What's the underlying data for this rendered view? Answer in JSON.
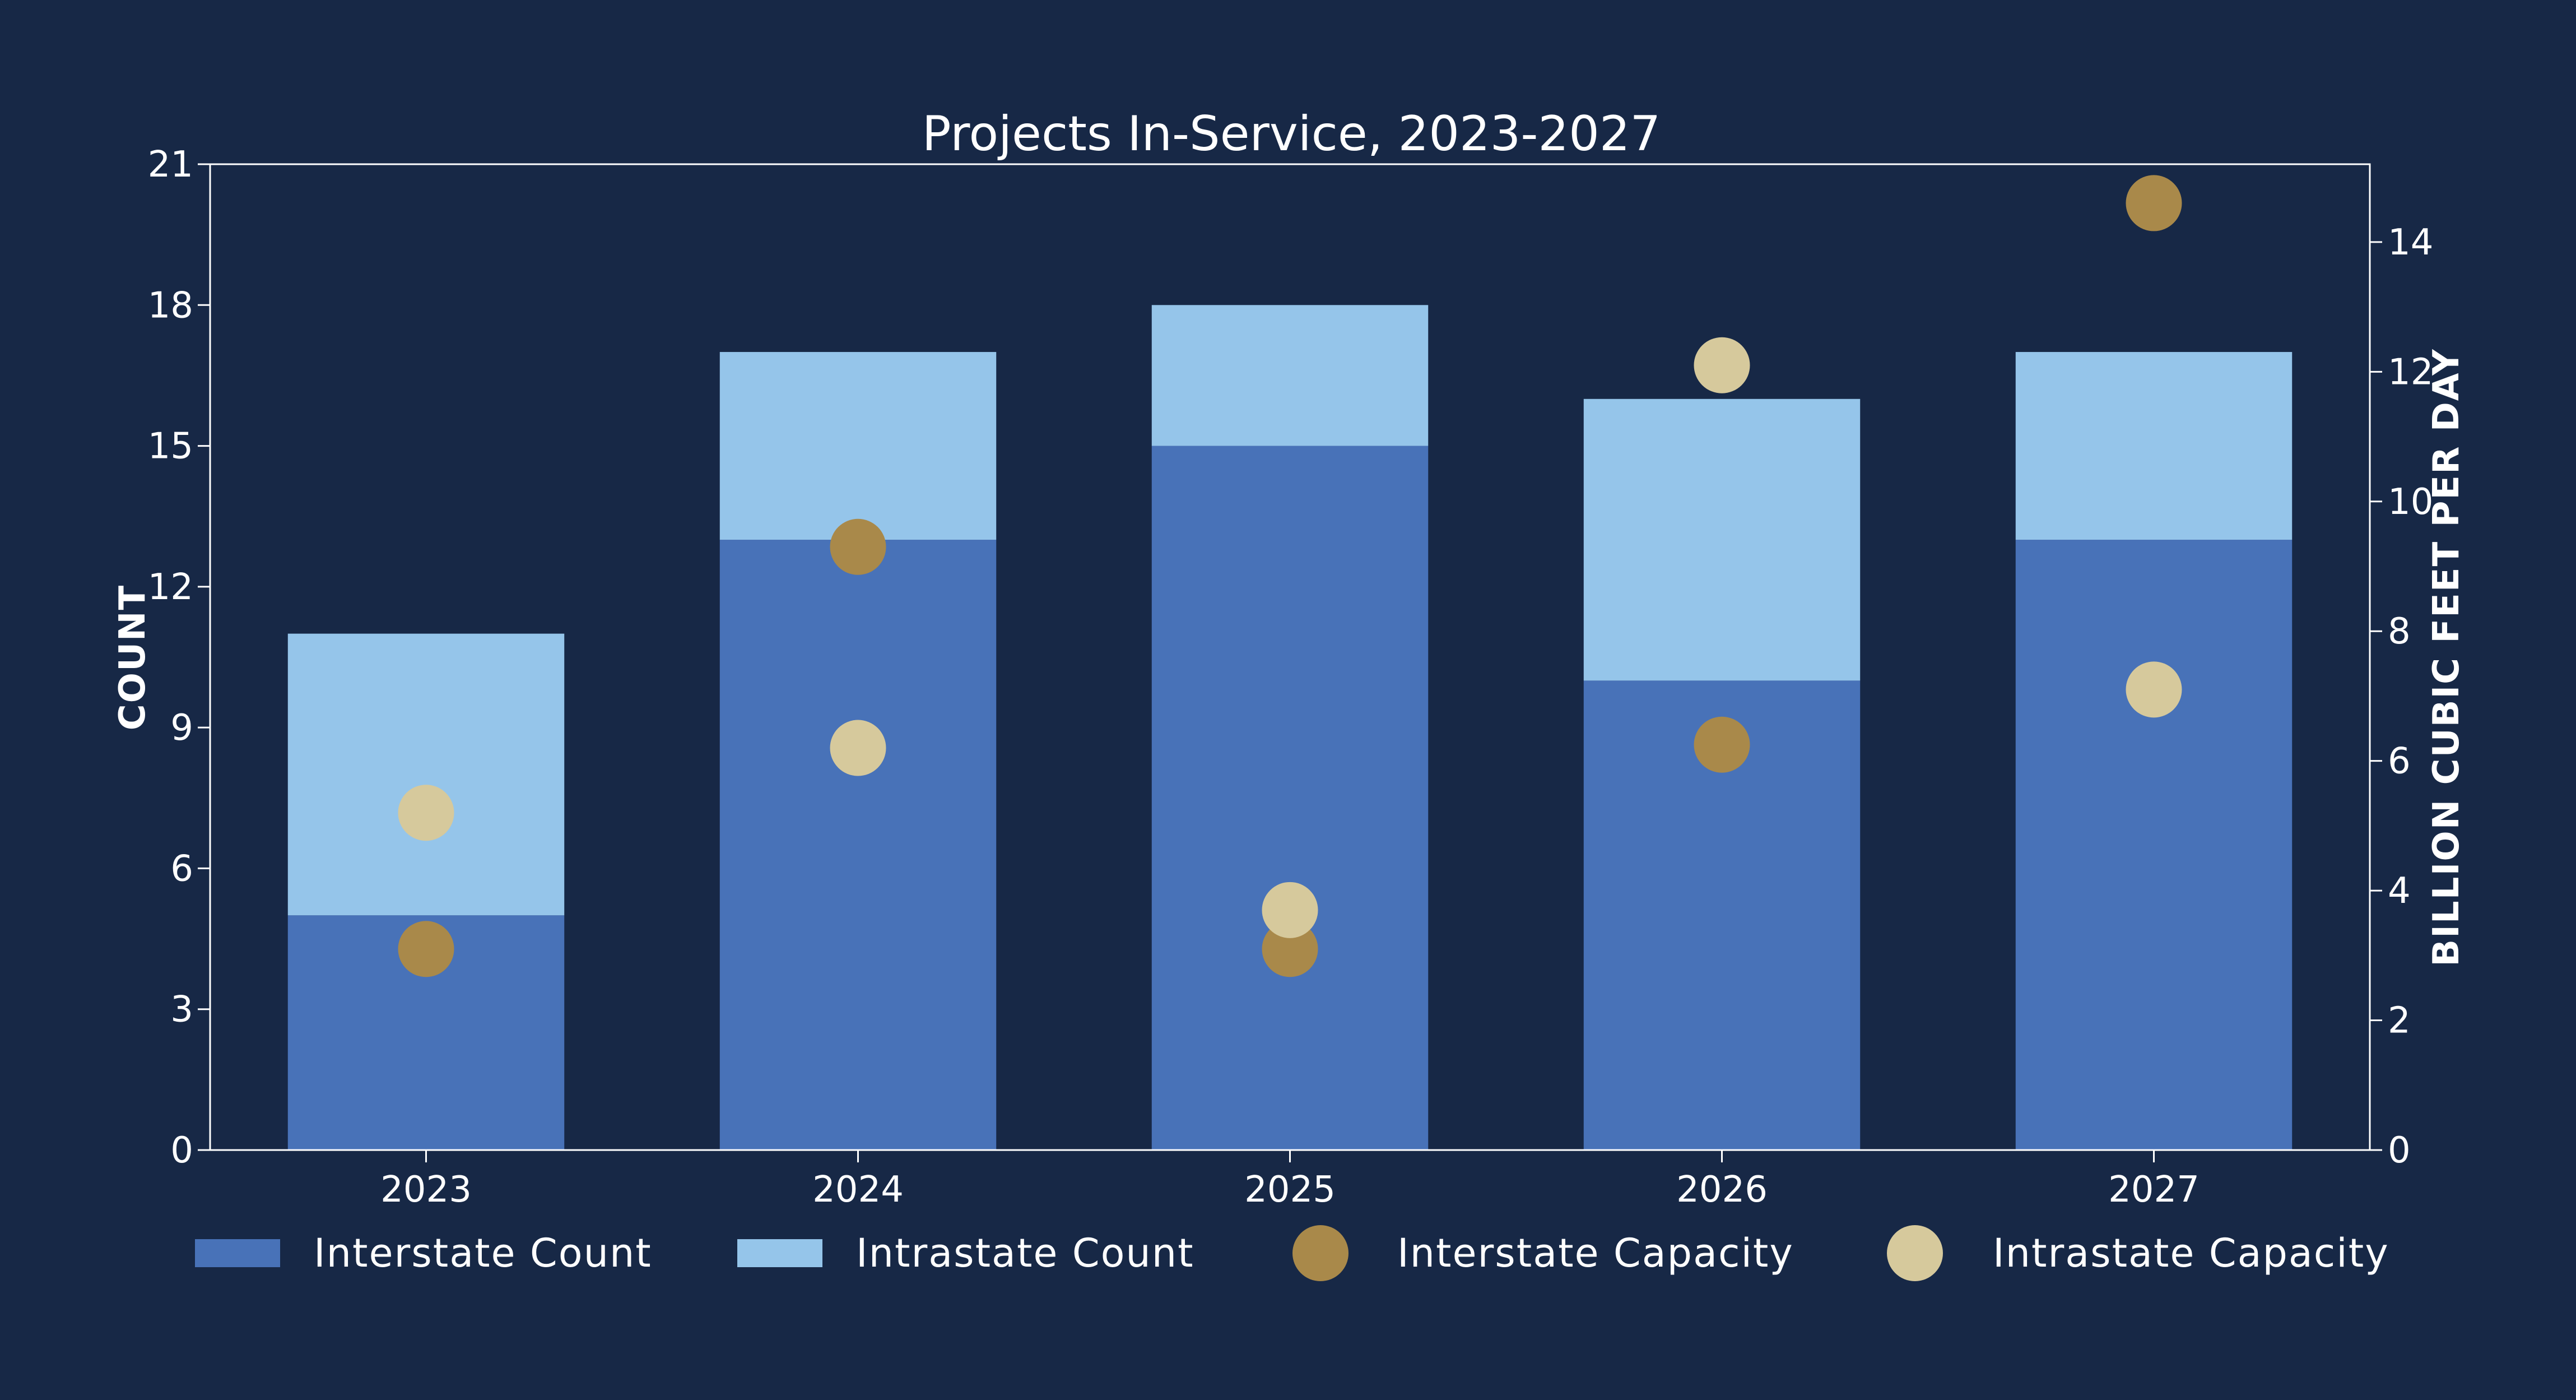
{
  "chart_data": {
    "type": "bar",
    "title": "Projects In-Service, 2023-2027",
    "categories": [
      "2023",
      "2024",
      "2025",
      "2026",
      "2027"
    ],
    "ylabel": "COUNT",
    "y2label": "BILLION CUBIC FEET PER DAY",
    "ylim": [
      0,
      21
    ],
    "y2lim": [
      0,
      15.2
    ],
    "yticks": [
      "0",
      "3",
      "6",
      "9",
      "12",
      "15",
      "18",
      "21"
    ],
    "y2ticks": [
      "0",
      "2",
      "4",
      "6",
      "8",
      "10",
      "12",
      "14"
    ],
    "stacked": true,
    "series": [
      {
        "name": "Interstate Count",
        "kind": "bar",
        "axis": "left",
        "color": "#4872b8",
        "values": [
          5,
          13,
          15,
          10,
          13
        ]
      },
      {
        "name": "Intrastate Count",
        "kind": "bar",
        "axis": "left",
        "color": "#95c5ea",
        "values": [
          6,
          4,
          3,
          6,
          4
        ]
      },
      {
        "name": "Interstate Capacity",
        "kind": "scatter",
        "axis": "right",
        "color": "#a9894a",
        "values": [
          3.1,
          9.3,
          3.1,
          6.25,
          14.6
        ]
      },
      {
        "name": "Intrastate Capacity",
        "kind": "scatter",
        "axis": "right",
        "color": "#d6c99c",
        "values": [
          5.2,
          6.2,
          3.7,
          12.1,
          7.1
        ]
      }
    ],
    "legend_position": "bottom"
  },
  "colors": {
    "background": "#172846",
    "axis": "#ffffff"
  }
}
